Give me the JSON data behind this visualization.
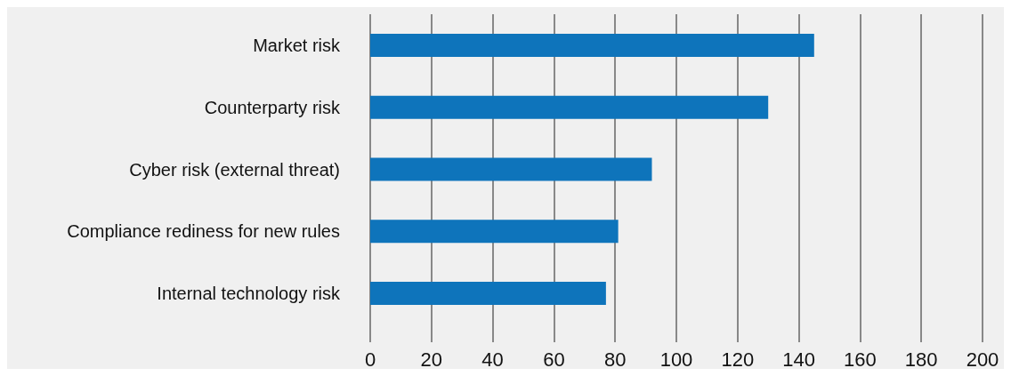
{
  "chart_data": {
    "type": "bar",
    "orientation": "horizontal",
    "categories": [
      "Market risk",
      "Counterparty risk",
      "Cyber risk (external threat)",
      "Compliance rediness for new rules",
      "Internal technology risk"
    ],
    "values": [
      145,
      130,
      92,
      81,
      77
    ],
    "color": "#0e74bb",
    "xlim": [
      0,
      200
    ],
    "xticks": [
      0,
      20,
      40,
      60,
      80,
      100,
      120,
      140,
      160,
      180,
      200
    ],
    "grid": "x"
  }
}
